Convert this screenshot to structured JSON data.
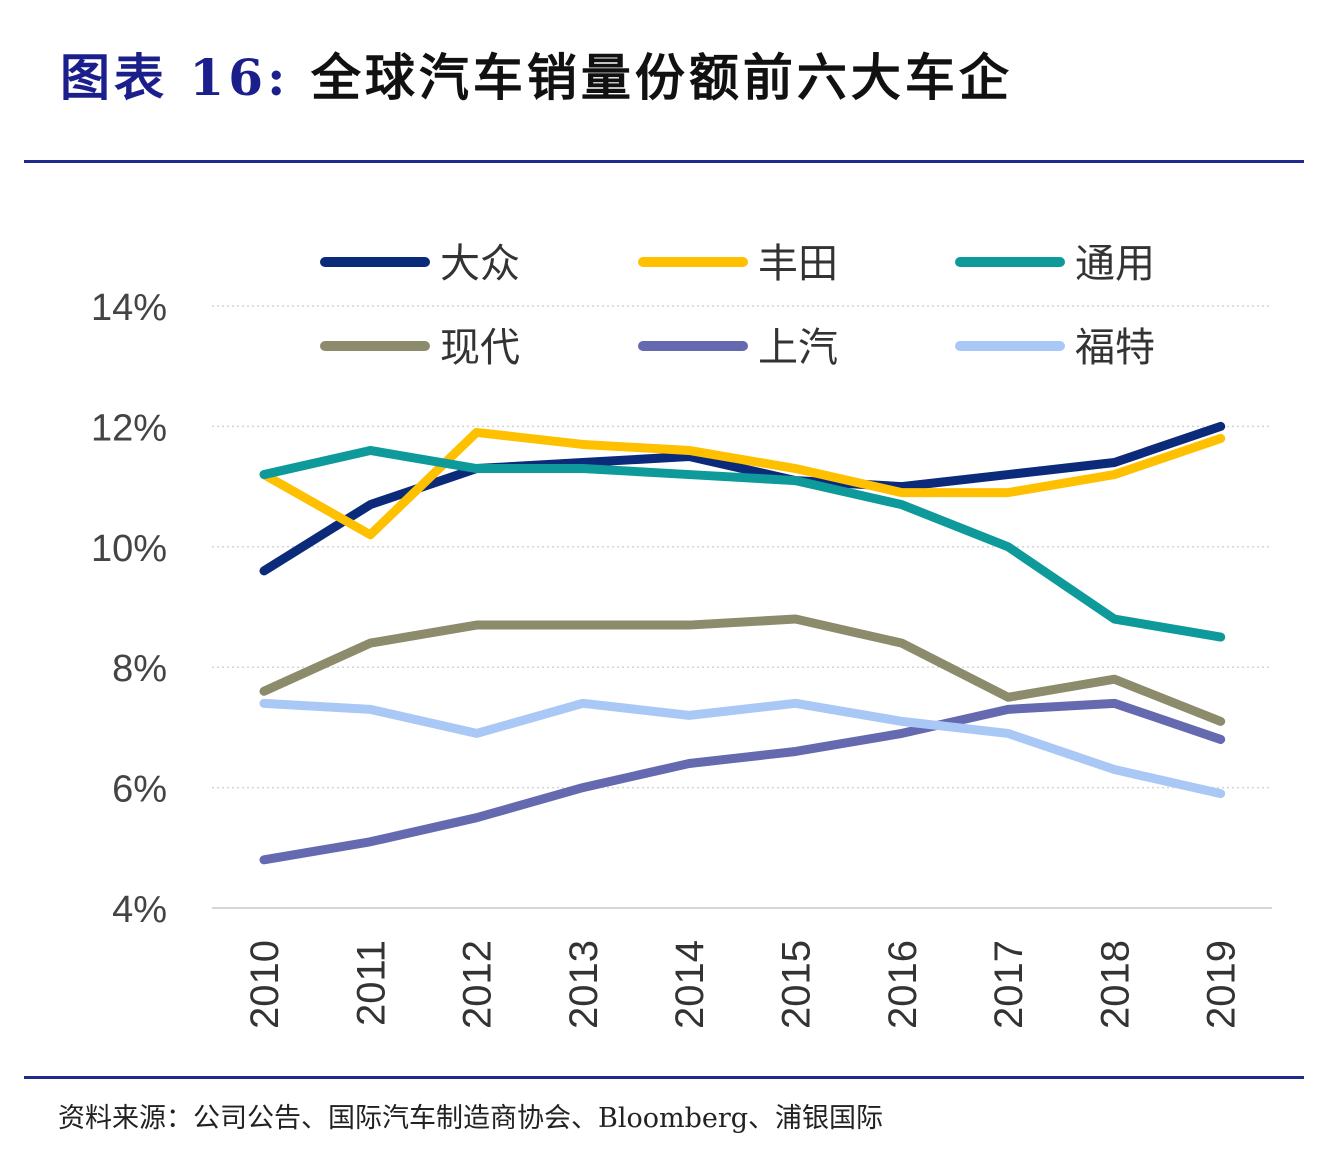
{
  "title": {
    "label": "图表 16:",
    "text": "全球汽车销量份额前六大车企"
  },
  "source": "资料来源：公司公告、国际汽车制造商协会、Bloomberg、浦银国际",
  "chart_data": {
    "type": "line",
    "title": "",
    "xlabel": "",
    "ylabel": "",
    "categories": [
      "2010",
      "2011",
      "2012",
      "2013",
      "2014",
      "2015",
      "2016",
      "2017",
      "2018",
      "2019"
    ],
    "ylim": [
      4,
      14
    ],
    "yticks": [
      4,
      6,
      8,
      10,
      12,
      14
    ],
    "ytick_labels": [
      "4%",
      "6%",
      "8%",
      "10%",
      "12%",
      "14%"
    ],
    "grid": true,
    "legend_position": "top",
    "series": [
      {
        "name": "大众",
        "color": "#0b2a7a",
        "values": [
          9.6,
          10.7,
          11.3,
          11.4,
          11.5,
          11.1,
          11.0,
          11.2,
          11.4,
          12.0
        ]
      },
      {
        "name": "丰田",
        "color": "#ffc000",
        "values": [
          11.2,
          10.2,
          11.9,
          11.7,
          11.6,
          11.3,
          10.9,
          10.9,
          11.2,
          11.8
        ]
      },
      {
        "name": "通用",
        "color": "#0e9a9a",
        "values": [
          11.2,
          11.6,
          11.3,
          11.3,
          11.2,
          11.1,
          10.7,
          10.0,
          8.8,
          8.5
        ]
      },
      {
        "name": "现代",
        "color": "#8c8c6c",
        "values": [
          7.6,
          8.4,
          8.7,
          8.7,
          8.7,
          8.8,
          8.4,
          7.5,
          7.8,
          7.1
        ]
      },
      {
        "name": "上汽",
        "color": "#6569b0",
        "values": [
          4.8,
          5.1,
          5.5,
          6.0,
          6.4,
          6.6,
          6.9,
          7.3,
          7.4,
          6.8
        ]
      },
      {
        "name": "福特",
        "color": "#a9c8f5",
        "values": [
          7.4,
          7.3,
          6.9,
          7.4,
          7.2,
          7.4,
          7.1,
          6.9,
          6.3,
          5.9
        ]
      }
    ]
  }
}
